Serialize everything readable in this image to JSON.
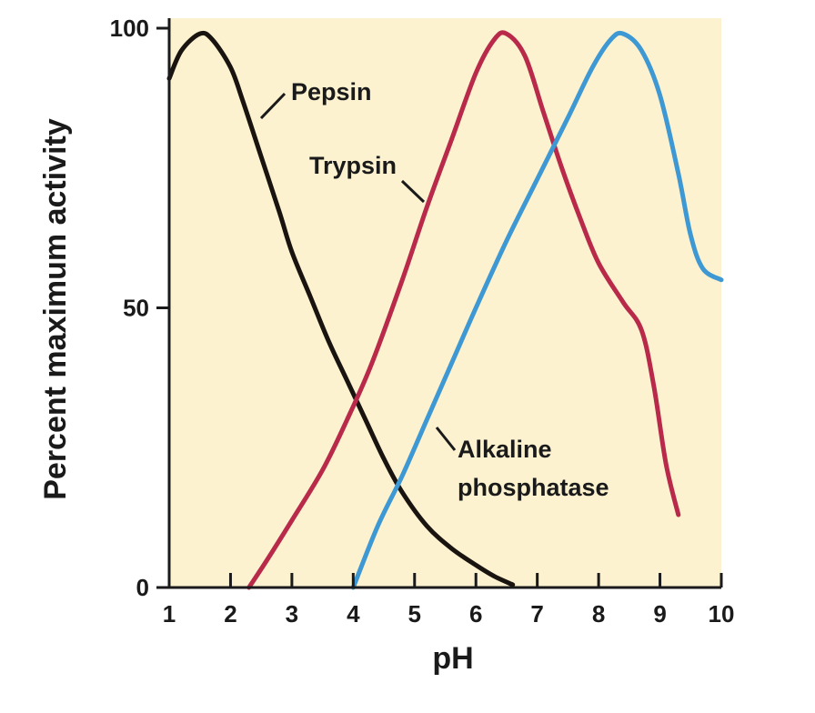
{
  "chart_data": {
    "type": "line",
    "title": "",
    "xlabel": "pH",
    "ylabel": "Percent maximum activity",
    "xlim": [
      1,
      10
    ],
    "ylim": [
      0,
      100
    ],
    "xticks": [
      "1",
      "2",
      "3",
      "4",
      "5",
      "6",
      "7",
      "8",
      "9",
      "10"
    ],
    "yticks": [
      "0",
      "50",
      "100"
    ],
    "background_color": "#FCF2D0",
    "grid": false,
    "series": [
      {
        "name": "Pepsin",
        "color": "#1A1410",
        "points": [
          [
            1.0,
            91
          ],
          [
            1.2,
            96
          ],
          [
            1.5,
            99
          ],
          [
            1.7,
            98
          ],
          [
            2.0,
            93
          ],
          [
            2.2,
            87
          ],
          [
            2.5,
            77
          ],
          [
            2.8,
            67
          ],
          [
            3.0,
            60
          ],
          [
            3.3,
            52
          ],
          [
            3.6,
            44
          ],
          [
            3.9,
            37
          ],
          [
            4.2,
            30
          ],
          [
            4.5,
            23
          ],
          [
            4.8,
            17
          ],
          [
            5.2,
            11
          ],
          [
            5.6,
            7
          ],
          [
            6.0,
            4
          ],
          [
            6.3,
            2
          ],
          [
            6.6,
            0.5
          ]
        ]
      },
      {
        "name": "Trypsin",
        "color": "#B8294A",
        "points": [
          [
            2.3,
            0
          ],
          [
            2.6,
            5
          ],
          [
            3.0,
            12
          ],
          [
            3.5,
            21
          ],
          [
            3.9,
            30
          ],
          [
            4.3,
            40
          ],
          [
            4.8,
            55
          ],
          [
            5.2,
            68
          ],
          [
            5.6,
            80
          ],
          [
            6.0,
            92
          ],
          [
            6.3,
            98
          ],
          [
            6.5,
            99
          ],
          [
            6.8,
            95
          ],
          [
            7.1,
            85
          ],
          [
            7.4,
            75
          ],
          [
            7.7,
            66
          ],
          [
            8.0,
            58
          ],
          [
            8.4,
            51
          ],
          [
            8.7,
            46
          ],
          [
            8.9,
            36
          ],
          [
            9.1,
            22
          ],
          [
            9.3,
            13
          ]
        ]
      },
      {
        "name": "Alkaline phosphatase",
        "color": "#3D98D3",
        "points": [
          [
            4.0,
            0
          ],
          [
            4.4,
            11
          ],
          [
            4.8,
            20
          ],
          [
            5.2,
            30
          ],
          [
            5.6,
            40
          ],
          [
            6.0,
            50
          ],
          [
            6.5,
            62
          ],
          [
            7.0,
            73
          ],
          [
            7.5,
            84
          ],
          [
            7.9,
            93
          ],
          [
            8.2,
            98
          ],
          [
            8.4,
            99
          ],
          [
            8.7,
            96
          ],
          [
            9.0,
            88
          ],
          [
            9.3,
            74
          ],
          [
            9.5,
            63
          ],
          [
            9.7,
            57
          ],
          [
            10.0,
            55
          ]
        ]
      }
    ],
    "annotations": {
      "pepsin": "Pepsin",
      "trypsin": "Trypsin",
      "alkaline_line1": "Alkaline",
      "alkaline_line2": "phosphatase"
    }
  }
}
